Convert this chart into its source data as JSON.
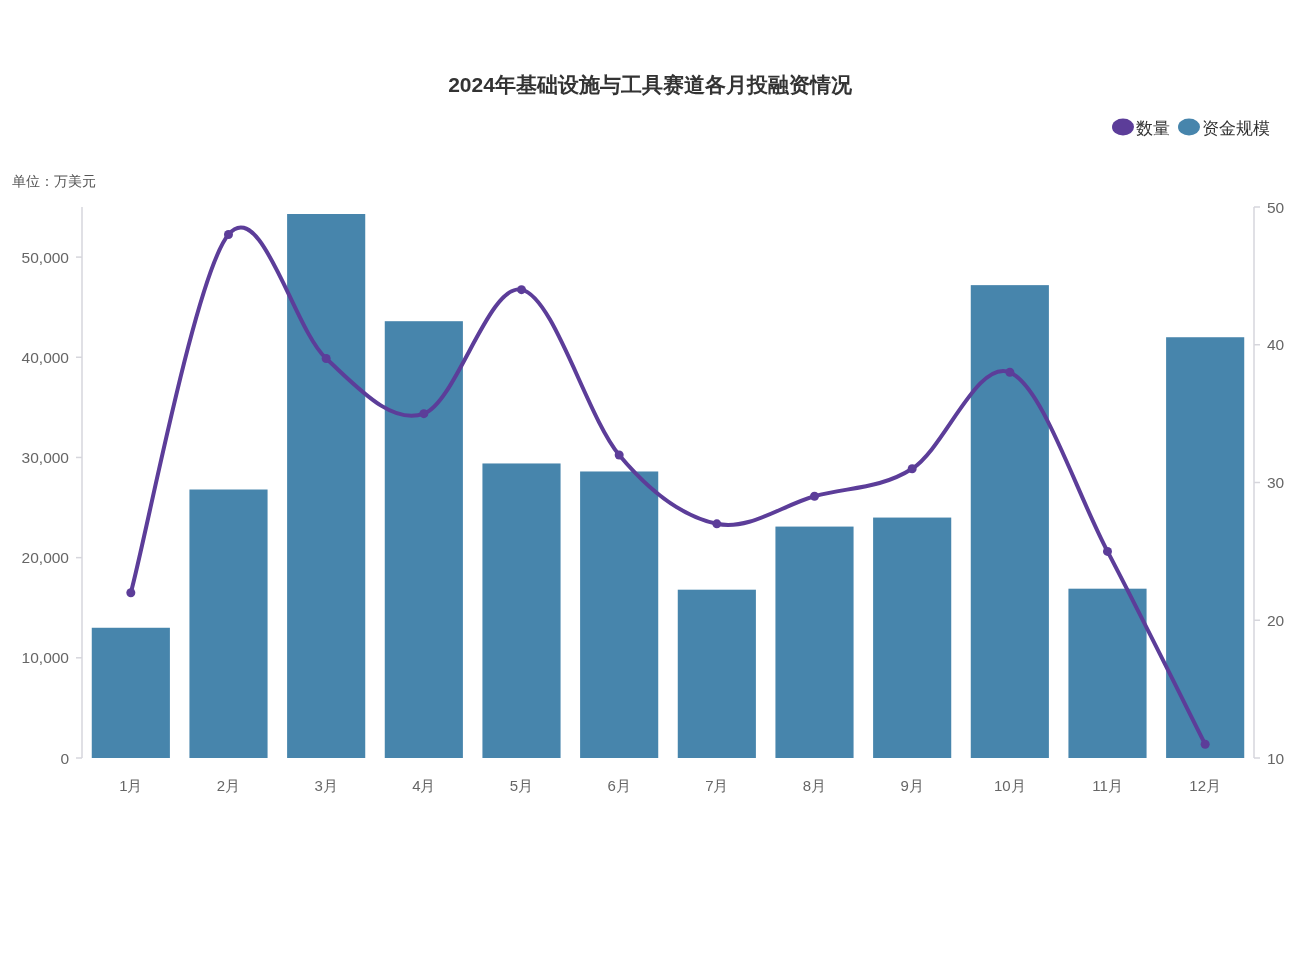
{
  "chart_data": {
    "type": "bar",
    "title": "2024年基础设施与工具赛道各月投融资情况",
    "ylabel": "单位：万美元",
    "categories": [
      "1月",
      "2月",
      "3月",
      "4月",
      "5月",
      "6月",
      "7月",
      "8月",
      "9月",
      "10月",
      "11月",
      "12月"
    ],
    "series": [
      {
        "name": "数量",
        "type": "line",
        "axis": "y2",
        "color": "#5c3d99",
        "values": [
          22,
          48,
          39,
          35,
          44,
          32,
          27,
          29,
          31,
          38,
          25,
          11
        ]
      },
      {
        "name": "资金规模",
        "color": "#4785ac",
        "values": [
          13000,
          26800,
          54300,
          43600,
          29400,
          28600,
          16800,
          23100,
          24000,
          47200,
          16900,
          42000
        ]
      }
    ],
    "ylim": [
      0,
      55000
    ],
    "yticks": [
      0,
      {
        "value": 10000,
        "label": "10,000"
      },
      {
        "value": 20000,
        "label": "20,000"
      },
      {
        "value": 30000,
        "label": "30,000"
      },
      {
        "value": 40000,
        "label": "40,000"
      },
      {
        "value": 50000,
        "label": "50,000"
      }
    ],
    "y2lim": [
      10,
      50
    ],
    "y2ticks": [
      10,
      20,
      30,
      40,
      50
    ],
    "legend": "top right",
    "marker": "circle",
    "line_style": "solid"
  }
}
